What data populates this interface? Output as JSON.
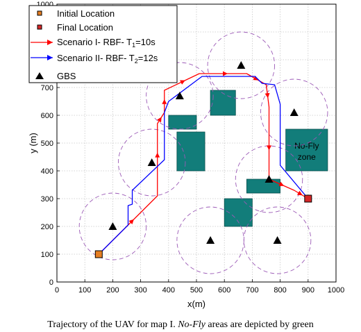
{
  "chart_data": {
    "type": "line",
    "xlabel": "x(m)",
    "ylabel": "y (m)",
    "xlim": [
      0,
      1000
    ],
    "ylim": [
      0,
      1000
    ],
    "xticks": [
      "0",
      "100",
      "200",
      "300",
      "400",
      "500",
      "600",
      "700",
      "800",
      "900",
      "1000"
    ],
    "yticks": [
      "0",
      "100",
      "200",
      "300",
      "400",
      "500",
      "600",
      "700",
      "800",
      "900",
      "1000"
    ],
    "grid": true,
    "legend_position": "top-left",
    "legend": {
      "initial": "Initial Location",
      "final": "Final Location",
      "s1": "Scenario I- RBF- T",
      "s1_sub": "1",
      "s1_tail": "=10s",
      "s2": "Scenario II- RBF- T",
      "s2_sub": "2",
      "s2_tail": "=12s",
      "gbs": "GBS"
    },
    "initial_location": {
      "x": 150,
      "y": 100,
      "color": "#e67e22"
    },
    "final_location": {
      "x": 900,
      "y": 300,
      "color": "#d62728"
    },
    "gbs": [
      {
        "x": 200,
        "y": 200,
        "radius": 120
      },
      {
        "x": 340,
        "y": 430,
        "radius": 120
      },
      {
        "x": 440,
        "y": 670,
        "radius": 120
      },
      {
        "x": 660,
        "y": 780,
        "radius": 120
      },
      {
        "x": 850,
        "y": 610,
        "radius": 120
      },
      {
        "x": 760,
        "y": 370,
        "radius": 120
      },
      {
        "x": 550,
        "y": 150,
        "radius": 120
      },
      {
        "x": 790,
        "y": 150,
        "radius": 120
      }
    ],
    "no_fly_zones": [
      {
        "x0": 400,
        "x1": 500,
        "y0": 550,
        "y1": 600
      },
      {
        "x0": 430,
        "x1": 530,
        "y0": 400,
        "y1": 540
      },
      {
        "x0": 550,
        "x1": 640,
        "y0": 600,
        "y1": 690
      },
      {
        "x0": 680,
        "x1": 800,
        "y0": 320,
        "y1": 370
      },
      {
        "x0": 600,
        "x1": 700,
        "y0": 200,
        "y1": 300
      },
      {
        "x0": 820,
        "x1": 970,
        "y0": 400,
        "y1": 550
      }
    ],
    "zone_label": [
      "No-Fly",
      "zone"
    ],
    "zone_label_pos": {
      "x": 895,
      "y": 475
    },
    "series": [
      {
        "name": "Scenario I- RBF- T1=10s",
        "color": "#ff0000",
        "x": [
          150,
          360,
          360,
          385,
          385,
          510,
          680,
          750,
          760,
          760,
          850,
          900
        ],
        "y": [
          100,
          310,
          570,
          610,
          690,
          750,
          750,
          710,
          630,
          370,
          330,
          300
        ]
      },
      {
        "name": "Scenario II- RBF- T2=12s",
        "color": "#0000ff",
        "x": [
          150,
          255,
          255,
          270,
          270,
          385,
          385,
          400,
          520,
          710,
          735,
          780,
          800,
          800,
          900
        ],
        "y": [
          100,
          205,
          275,
          280,
          330,
          440,
          610,
          650,
          740,
          740,
          715,
          710,
          640,
          420,
          300
        ]
      }
    ]
  },
  "caption": {
    "part1": "Trajectory of the UAV for map I. ",
    "italic": "No-Fly",
    "part2": " areas are depicted by green"
  }
}
